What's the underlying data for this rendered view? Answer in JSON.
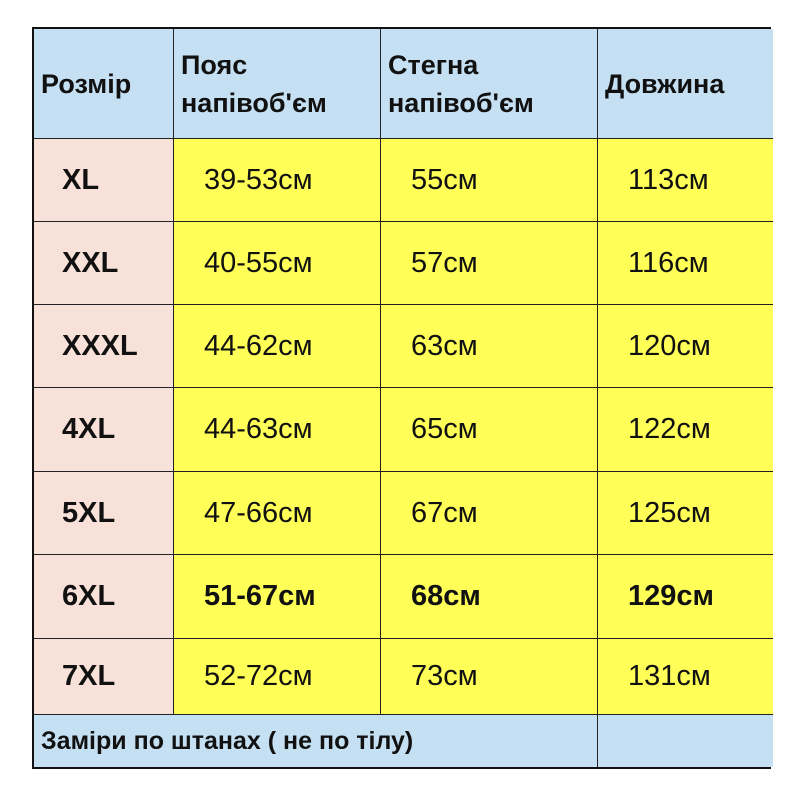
{
  "headers": [
    "Розмір",
    "Пояс напівоб'єм",
    "Стегна напівоб'єм",
    "Довжина"
  ],
  "header_lines": [
    [
      "Розмір"
    ],
    [
      "Пояс",
      "напівоб'єм"
    ],
    [
      "Стегна",
      "напівоб'єм"
    ],
    [
      "Довжина"
    ]
  ],
  "rows": [
    {
      "size": "XL",
      "waist": "39-53см",
      "hips": "55см",
      "length": "113см"
    },
    {
      "size": "XXL",
      "waist": "40-55см",
      "hips": "57см",
      "length": "116см"
    },
    {
      "size": "XXXL",
      "waist": "44-62см",
      "hips": "63см",
      "length": "120см"
    },
    {
      "size": "4XL",
      "waist": "44-63см",
      "hips": "65см",
      "length": "122см"
    },
    {
      "size": "5XL",
      "waist": "47-66см",
      "hips": "67см",
      "length": "125см"
    },
    {
      "size": "6XL",
      "waist": "51-67см",
      "hips": "68см",
      "length": "129см",
      "bold": true
    },
    {
      "size": "7XL",
      "waist": "52-72см",
      "hips": "73см",
      "length": "131см"
    }
  ],
  "footer": "Заміри по штанах ( не по тілу)",
  "colors": {
    "header": "#c6e0f3",
    "size_column": "#f7e1d8",
    "values": "#ffff58"
  }
}
